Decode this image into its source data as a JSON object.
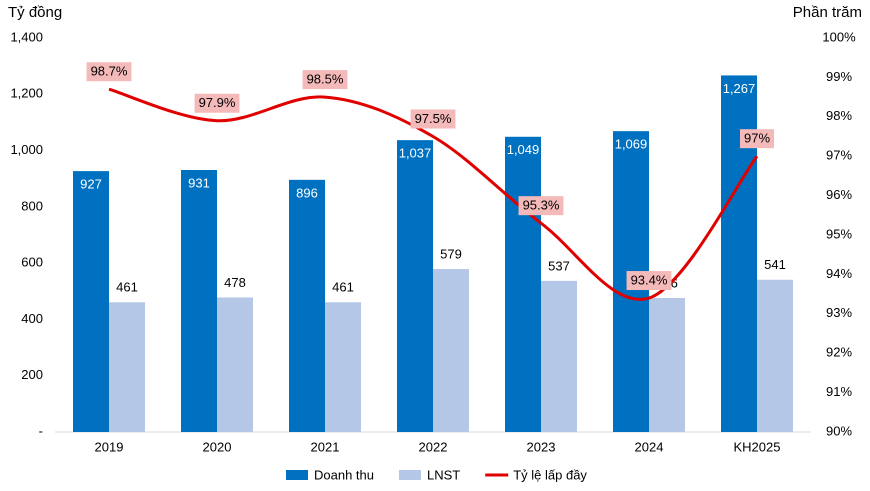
{
  "chart_data": {
    "type": "bar",
    "y_label": "Tỷ đồng",
    "y2_label": "Phần trăm",
    "categories": [
      "2019",
      "2020",
      "2021",
      "2022",
      "2023",
      "2024",
      "KH2025"
    ],
    "series": [
      {
        "name": "Doanh thu",
        "type": "bar",
        "color": "#0070c0",
        "values": [
          927,
          931,
          896,
          1037,
          1049,
          1069,
          1267
        ],
        "value_labels": [
          "927",
          "931",
          "896",
          "1,037",
          "1,049",
          "1,069",
          "1,267"
        ]
      },
      {
        "name": "LNST",
        "type": "bar",
        "color": "#b4c7e7",
        "values": [
          461,
          478,
          461,
          579,
          537,
          476,
          541
        ]
      },
      {
        "name": "Tỷ lệ lấp đầy",
        "type": "line",
        "axis": "y2",
        "color": "#e00000",
        "values": [
          98.7,
          97.9,
          98.5,
          97.5,
          95.3,
          93.4,
          97
        ],
        "value_labels": [
          "98.7%",
          "97.9%",
          "98.5%",
          "97.5%",
          "95.3%",
          "93.4%",
          "97%"
        ]
      }
    ],
    "ylim": [
      0,
      1400
    ],
    "yticks": [
      {
        "value": 0,
        "label": "-"
      },
      200,
      400,
      600,
      800,
      {
        "value": 1000,
        "label": "1,000"
      },
      {
        "value": 1200,
        "label": "1,200"
      },
      {
        "value": 1400,
        "label": "1,400"
      }
    ],
    "y2lim": [
      90,
      100
    ],
    "y2ticks": [
      {
        "value": 90,
        "label": "90%"
      },
      {
        "value": 91,
        "label": "91%"
      },
      {
        "value": 92,
        "label": "92%"
      },
      {
        "value": 93,
        "label": "93%"
      },
      {
        "value": 94,
        "label": "94%"
      },
      {
        "value": 95,
        "label": "95%"
      },
      {
        "value": 96,
        "label": "96%"
      },
      {
        "value": 97,
        "label": "97%"
      },
      {
        "value": 98,
        "label": "98%"
      },
      {
        "value": 99,
        "label": "99%"
      },
      {
        "value": 100,
        "label": "100%"
      }
    ],
    "grid": false,
    "legend": "bottom"
  }
}
